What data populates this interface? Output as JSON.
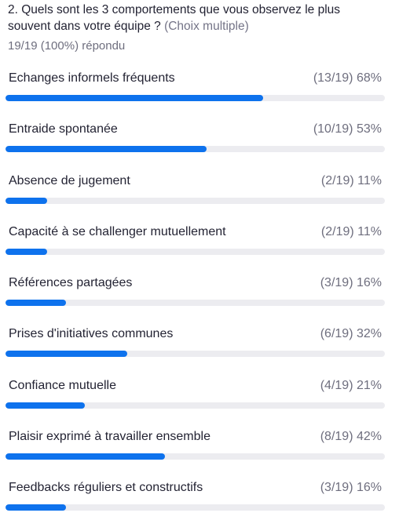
{
  "question": {
    "text": "2. Quels sont les 3 comportements que vous observez le plus souvent dans votre équipe ?",
    "hint": "(Choix multiple)",
    "answered": "19/19 (100%) répondu"
  },
  "colors": {
    "bar_fill": "#0e72ed",
    "bar_track": "#ececf0"
  },
  "options": [
    {
      "label": "Echanges informels fréquents",
      "count": "(13/19)",
      "percent": "68%",
      "fraction": 0.68
    },
    {
      "label": "Entraide spontanée",
      "count": "(10/19)",
      "percent": "53%",
      "fraction": 0.53
    },
    {
      "label": "Absence de jugement",
      "count": "(2/19)",
      "percent": "11%",
      "fraction": 0.11
    },
    {
      "label": "Capacité à se challenger mutuellement",
      "count": "(2/19)",
      "percent": "11%",
      "fraction": 0.11
    },
    {
      "label": "Références partagées",
      "count": "(3/19)",
      "percent": "16%",
      "fraction": 0.16
    },
    {
      "label": "Prises d'initiatives communes",
      "count": "(6/19)",
      "percent": "32%",
      "fraction": 0.32
    },
    {
      "label": "Confiance mutuelle",
      "count": "(4/19)",
      "percent": "21%",
      "fraction": 0.21
    },
    {
      "label": "Plaisir exprimé à travailler ensemble",
      "count": "(8/19)",
      "percent": "42%",
      "fraction": 0.42
    },
    {
      "label": "Feedbacks réguliers et constructifs",
      "count": "(3/19)",
      "percent": "16%",
      "fraction": 0.16
    }
  ]
}
